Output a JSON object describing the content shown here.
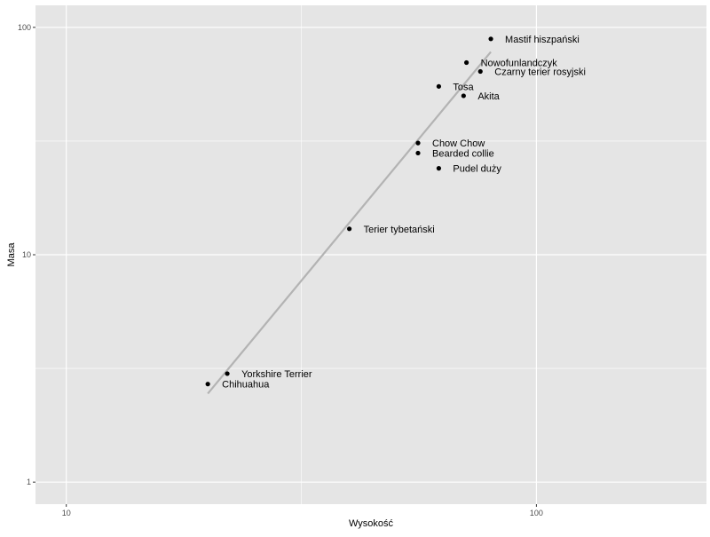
{
  "chart_data": {
    "type": "scatter",
    "xlabel": "Wysokość",
    "ylabel": "Masa",
    "x_scale": "log10",
    "y_scale": "log10",
    "xlim": [
      8.6,
      230
    ],
    "ylim": [
      0.8,
      125
    ],
    "x_ticks": [
      10,
      100
    ],
    "x_tick_labels": [
      "10",
      "100"
    ],
    "y_ticks": [
      1,
      10,
      100
    ],
    "y_tick_labels": [
      "1",
      "10",
      "100"
    ],
    "grid": true,
    "panel_background": "#e5e5e5",
    "grid_color": "#ffffff",
    "point_color": "#000000",
    "fit_line": {
      "color": "#b3b3b3",
      "x": [
        20.0,
        80.0
      ],
      "y": [
        2.45,
        78.0
      ]
    },
    "points": [
      {
        "label": "Mastif hiszpański",
        "x": 80,
        "y": 89
      },
      {
        "label": "Nowofunlandczyk",
        "x": 71,
        "y": 70
      },
      {
        "label": "Czarny terier rosyjski",
        "x": 76,
        "y": 64
      },
      {
        "label": "Tosa",
        "x": 62,
        "y": 55
      },
      {
        "label": "Akita",
        "x": 70,
        "y": 50
      },
      {
        "label": "Chow Chow",
        "x": 56,
        "y": 31
      },
      {
        "label": "Bearded collie",
        "x": 56,
        "y": 28
      },
      {
        "label": "Pudel duży",
        "x": 62,
        "y": 24
      },
      {
        "label": "Terier tybetański",
        "x": 40,
        "y": 13
      },
      {
        "label": "Yorkshire Terrier",
        "x": 22,
        "y": 3
      },
      {
        "label": "Chihuahua",
        "x": 20,
        "y": 2.7
      }
    ]
  }
}
